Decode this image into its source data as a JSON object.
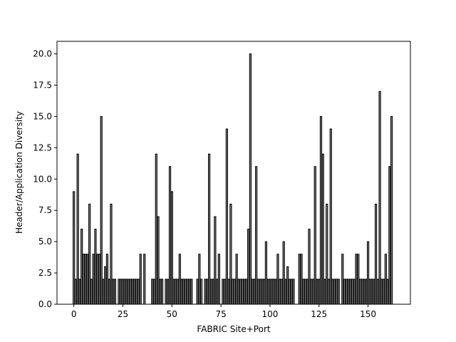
{
  "chart_data": {
    "type": "bar",
    "x_label": "FABRIC Site+Port",
    "y_label": "Header/Application Diversity",
    "color": "#808080",
    "edgecolor": "#000000",
    "x": [
      0,
      1,
      2,
      3,
      4,
      5,
      6,
      7,
      8,
      9,
      10,
      11,
      12,
      13,
      14,
      15,
      16,
      17,
      18,
      19,
      20,
      21,
      22,
      23,
      24,
      25,
      26,
      27,
      28,
      29,
      30,
      31,
      32,
      33,
      34,
      35,
      36,
      37,
      38,
      39,
      40,
      41,
      42,
      43,
      44,
      45,
      46,
      47,
      48,
      49,
      50,
      51,
      52,
      53,
      54,
      55,
      56,
      57,
      58,
      59,
      60,
      61,
      62,
      63,
      64,
      65,
      66,
      67,
      68,
      69,
      70,
      71,
      72,
      73,
      74,
      75,
      76,
      77,
      78,
      79,
      80,
      81,
      82,
      83,
      84,
      85,
      86,
      87,
      88,
      89,
      90,
      91,
      92,
      93,
      94,
      95,
      96,
      97,
      98,
      99,
      100,
      101,
      102,
      103,
      104,
      105,
      106,
      107,
      108,
      109,
      110,
      111,
      112,
      113,
      114,
      115,
      116,
      117,
      118,
      119,
      120,
      121,
      122,
      123,
      124,
      125,
      126,
      127,
      128,
      129,
      130,
      131,
      132,
      133,
      134,
      135,
      136,
      137,
      138,
      139,
      140,
      141,
      142,
      143,
      144,
      145,
      146,
      147,
      148,
      149,
      150,
      151,
      152,
      153,
      154,
      155,
      156,
      157,
      158,
      159,
      160,
      161,
      162
    ],
    "values": [
      9,
      2,
      12,
      2,
      6,
      4,
      4,
      4,
      8,
      2,
      4,
      6,
      4,
      4,
      15,
      2,
      3,
      4,
      2,
      8,
      2,
      2,
      0,
      2,
      2,
      2,
      2,
      2,
      2,
      2,
      2,
      2,
      2,
      2,
      4,
      0,
      4,
      0,
      0,
      0,
      2,
      2,
      12,
      7,
      2,
      2,
      0,
      2,
      2,
      11,
      9,
      2,
      2,
      2,
      4,
      2,
      2,
      2,
      2,
      2,
      2,
      0,
      0,
      2,
      4,
      2,
      0,
      2,
      2,
      12,
      2,
      2,
      7,
      2,
      4,
      0,
      2,
      2,
      14,
      2,
      8,
      2,
      2,
      4,
      2,
      2,
      2,
      2,
      2,
      6,
      20,
      2,
      2,
      11,
      2,
      2,
      2,
      2,
      5,
      2,
      2,
      2,
      2,
      2,
      4,
      2,
      2,
      5,
      2,
      3,
      2,
      2,
      2,
      0,
      0,
      4,
      4,
      2,
      2,
      2,
      6,
      2,
      2,
      11,
      2,
      2,
      15,
      12,
      2,
      8,
      2,
      14,
      2,
      2,
      2,
      2,
      0,
      4,
      2,
      2,
      2,
      2,
      2,
      2,
      4,
      4,
      2,
      2,
      2,
      2,
      5,
      2,
      2,
      2,
      8,
      2,
      17,
      2,
      2,
      4,
      2,
      11,
      15
    ],
    "xlim": [
      -8.59,
      171.59
    ],
    "xticks": [
      0,
      25,
      50,
      75,
      100,
      125,
      150
    ],
    "ylim": [
      0,
      21
    ],
    "yticks": [
      {
        "value": 0,
        "label": "0.0"
      },
      {
        "value": 2.5,
        "label": "2.5"
      },
      {
        "value": 5,
        "label": "5.0"
      },
      {
        "value": 7.5,
        "label": "7.5"
      },
      {
        "value": 10,
        "label": "10.0"
      },
      {
        "value": 12.5,
        "label": "12.5"
      },
      {
        "value": 15,
        "label": "15.0"
      },
      {
        "value": 17.5,
        "label": "17.5"
      },
      {
        "value": 20,
        "label": "20.0"
      }
    ]
  }
}
